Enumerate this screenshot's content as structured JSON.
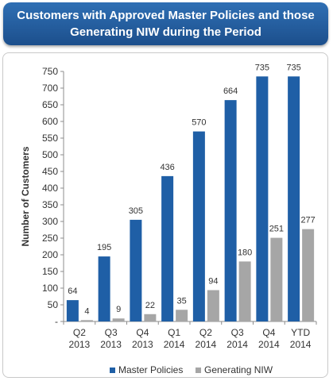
{
  "title": "Customers with Approved Master Policies and those Generating NIW during the Period",
  "chart_data": {
    "type": "bar",
    "title": "Customers with Approved Master Policies and those Generating NIW during the Period",
    "ylabel": "Number of Customers",
    "xlabel": "",
    "ylim": [
      0,
      750
    ],
    "yticks": [
      "-",
      "50",
      "100",
      "150",
      "200",
      "250",
      "300",
      "350",
      "400",
      "450",
      "500",
      "550",
      "600",
      "650",
      "700",
      "750"
    ],
    "categories": [
      [
        "Q2",
        "2013"
      ],
      [
        "Q3",
        "2013"
      ],
      [
        "Q4",
        "2013"
      ],
      [
        "Q1",
        "2014"
      ],
      [
        "Q2",
        "2014"
      ],
      [
        "Q3",
        "2014"
      ],
      [
        "Q4",
        "2014"
      ],
      [
        "YTD",
        "2014"
      ]
    ],
    "series": [
      {
        "name": "Master Policies",
        "values": [
          64,
          195,
          305,
          436,
          570,
          664,
          735,
          735
        ],
        "color": "#1f5fa6"
      },
      {
        "name": "Generating NIW",
        "values": [
          4,
          9,
          22,
          35,
          94,
          180,
          251,
          277
        ],
        "color": "#a6a6a6"
      }
    ],
    "grid": false,
    "legend": "bottom"
  }
}
